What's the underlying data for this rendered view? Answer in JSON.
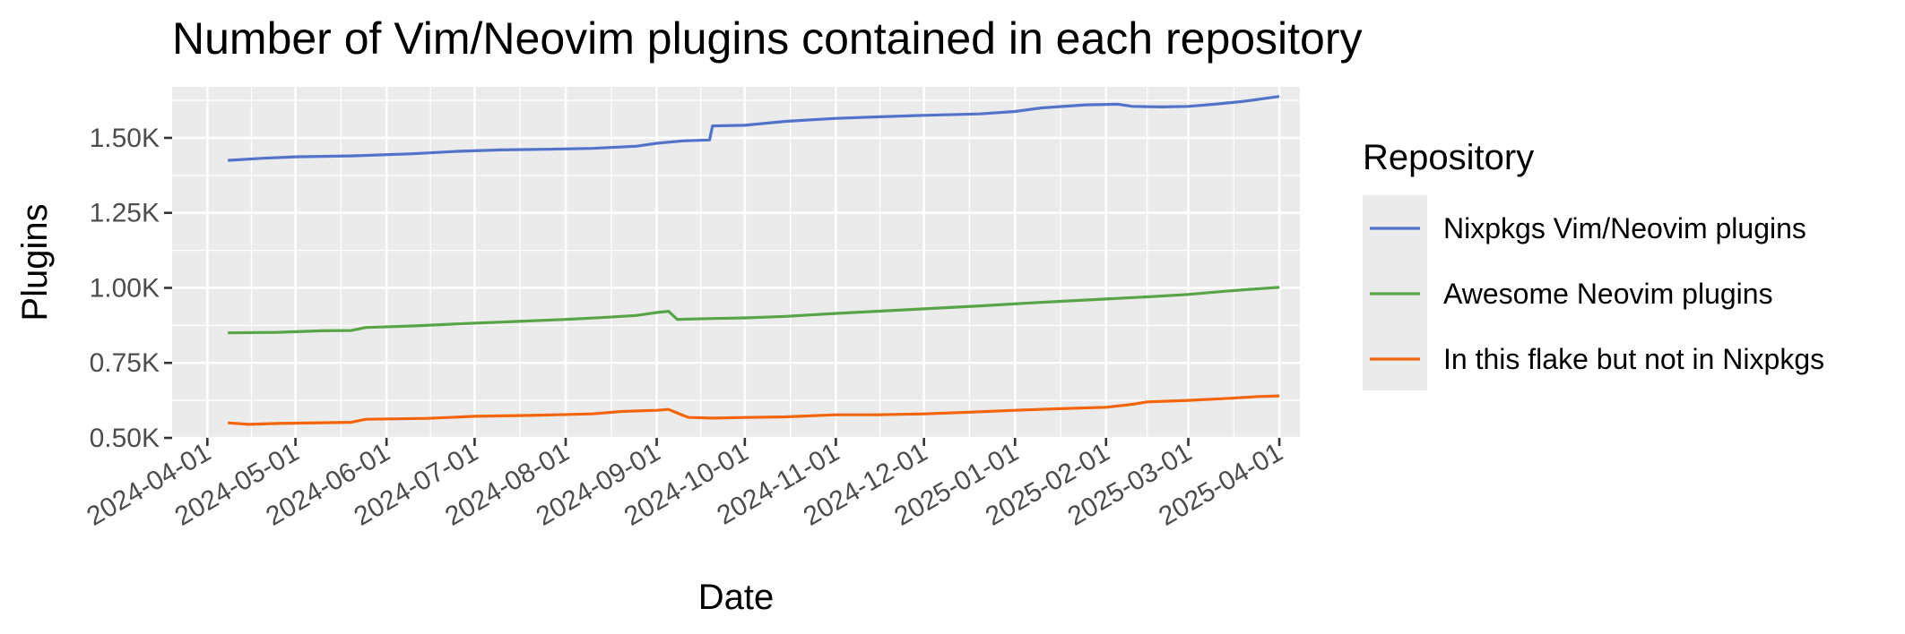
{
  "chart_data": {
    "type": "line",
    "title": "Number of Vim/Neovim plugins contained in each repository",
    "xlabel": "Date",
    "ylabel": "Plugins",
    "x_type": "date",
    "xlim": [
      "2024-03-20",
      "2025-04-08"
    ],
    "ylim": [
      0.5,
      1.67
    ],
    "y_unit_suffix": "K",
    "x_ticks": [
      "2024-04-01",
      "2024-05-01",
      "2024-06-01",
      "2024-07-01",
      "2024-08-01",
      "2024-09-01",
      "2024-10-01",
      "2024-11-01",
      "2024-12-01",
      "2025-01-01",
      "2025-02-01",
      "2025-03-01",
      "2025-04-01"
    ],
    "y_ticks": [
      0.5,
      0.75,
      1.0,
      1.25,
      1.5
    ],
    "y_tick_labels": [
      "0.50K",
      "0.75K",
      "1.00K",
      "1.25K",
      "1.50K"
    ],
    "grid": true,
    "legend": {
      "title": "Repository",
      "position": "right"
    },
    "series": [
      {
        "name": "Nixpkgs Vim/Neovim plugins",
        "color": "#5273c9",
        "points": [
          [
            "2024-04-08",
            1.425
          ],
          [
            "2024-04-20",
            1.432
          ],
          [
            "2024-05-01",
            1.437
          ],
          [
            "2024-05-20",
            1.44
          ],
          [
            "2024-06-10",
            1.447
          ],
          [
            "2024-06-25",
            1.455
          ],
          [
            "2024-07-10",
            1.46
          ],
          [
            "2024-07-25",
            1.462
          ],
          [
            "2024-08-10",
            1.465
          ],
          [
            "2024-08-25",
            1.472
          ],
          [
            "2024-09-01",
            1.482
          ],
          [
            "2024-09-10",
            1.49
          ],
          [
            "2024-09-19",
            1.493
          ],
          [
            "2024-09-20",
            1.54
          ],
          [
            "2024-10-01",
            1.542
          ],
          [
            "2024-10-15",
            1.555
          ],
          [
            "2024-11-01",
            1.565
          ],
          [
            "2024-11-15",
            1.57
          ],
          [
            "2024-12-01",
            1.575
          ],
          [
            "2024-12-20",
            1.58
          ],
          [
            "2025-01-01",
            1.588
          ],
          [
            "2025-01-10",
            1.6
          ],
          [
            "2025-01-25",
            1.61
          ],
          [
            "2025-02-05",
            1.612
          ],
          [
            "2025-02-10",
            1.605
          ],
          [
            "2025-02-20",
            1.603
          ],
          [
            "2025-03-01",
            1.605
          ],
          [
            "2025-03-10",
            1.612
          ],
          [
            "2025-03-20",
            1.622
          ],
          [
            "2025-04-01",
            1.638
          ]
        ]
      },
      {
        "name": "Awesome Neovim plugins",
        "color": "#58a547",
        "points": [
          [
            "2024-04-08",
            0.85
          ],
          [
            "2024-04-25",
            0.852
          ],
          [
            "2024-05-10",
            0.857
          ],
          [
            "2024-05-20",
            0.858
          ],
          [
            "2024-05-25",
            0.868
          ],
          [
            "2024-06-10",
            0.873
          ],
          [
            "2024-06-25",
            0.88
          ],
          [
            "2024-07-15",
            0.888
          ],
          [
            "2024-08-01",
            0.895
          ],
          [
            "2024-08-15",
            0.902
          ],
          [
            "2024-08-25",
            0.908
          ],
          [
            "2024-09-01",
            0.918
          ],
          [
            "2024-09-05",
            0.922
          ],
          [
            "2024-09-08",
            0.895
          ],
          [
            "2024-09-20",
            0.898
          ],
          [
            "2024-10-01",
            0.9
          ],
          [
            "2024-10-15",
            0.905
          ],
          [
            "2024-11-01",
            0.915
          ],
          [
            "2024-11-15",
            0.922
          ],
          [
            "2024-12-01",
            0.93
          ],
          [
            "2024-12-20",
            0.94
          ],
          [
            "2025-01-10",
            0.952
          ],
          [
            "2025-02-01",
            0.963
          ],
          [
            "2025-02-15",
            0.97
          ],
          [
            "2025-03-01",
            0.978
          ],
          [
            "2025-03-15",
            0.99
          ],
          [
            "2025-04-01",
            1.002
          ]
        ]
      },
      {
        "name": "In this flake but not in Nixpkgs",
        "color": "#f3650a",
        "points": [
          [
            "2024-04-08",
            0.55
          ],
          [
            "2024-04-15",
            0.545
          ],
          [
            "2024-04-25",
            0.548
          ],
          [
            "2024-05-20",
            0.552
          ],
          [
            "2024-05-25",
            0.562
          ],
          [
            "2024-06-15",
            0.565
          ],
          [
            "2024-07-01",
            0.572
          ],
          [
            "2024-07-20",
            0.575
          ],
          [
            "2024-08-10",
            0.58
          ],
          [
            "2024-08-20",
            0.588
          ],
          [
            "2024-09-01",
            0.592
          ],
          [
            "2024-09-05",
            0.595
          ],
          [
            "2024-09-10",
            0.575
          ],
          [
            "2024-09-12",
            0.568
          ],
          [
            "2024-09-20",
            0.566
          ],
          [
            "2024-10-01",
            0.568
          ],
          [
            "2024-10-15",
            0.57
          ],
          [
            "2024-11-01",
            0.577
          ],
          [
            "2024-11-15",
            0.577
          ],
          [
            "2024-12-01",
            0.58
          ],
          [
            "2024-12-15",
            0.585
          ],
          [
            "2025-01-01",
            0.592
          ],
          [
            "2025-01-15",
            0.597
          ],
          [
            "2025-02-01",
            0.602
          ],
          [
            "2025-02-10",
            0.612
          ],
          [
            "2025-02-15",
            0.62
          ],
          [
            "2025-03-01",
            0.625
          ],
          [
            "2025-03-15",
            0.632
          ],
          [
            "2025-03-25",
            0.638
          ],
          [
            "2025-04-01",
            0.64
          ]
        ]
      }
    ]
  }
}
